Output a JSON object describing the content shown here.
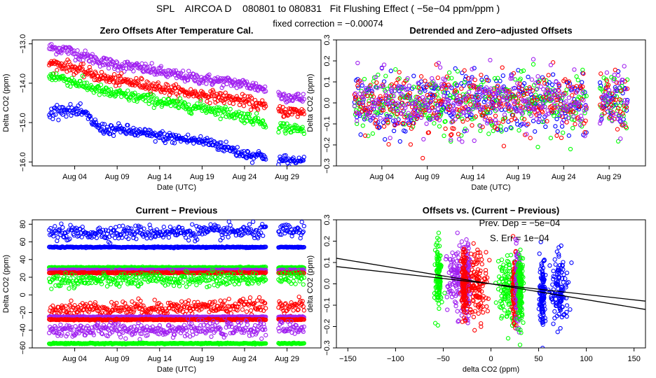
{
  "page": {
    "title": "SPL    AIRCOA D    080801 to 080831   Fit Flushing Effect ( −5e−04 ppm/ppm )",
    "subtitle": "fixed correction = −0.00074"
  },
  "colors": {
    "blue": "#0000ff",
    "red": "#ff0000",
    "green": "#00ff00",
    "purple": "#a020f0",
    "axis": "#000000"
  },
  "chart_data": [
    {
      "type": "scatter",
      "title": "Zero Offsets After Temperature Cal.",
      "xlabel": "Date (UTC)",
      "ylabel": "Delta CO2 (ppm)",
      "x_is_date": true,
      "xlim": [
        "2008-07-30",
        "2008-09-02"
      ],
      "ylim": [
        -16.1,
        -12.9
      ],
      "x_ticks": [
        {
          "value": "2008-08-04",
          "label": "Aug 04"
        },
        {
          "value": "2008-08-09",
          "label": "Aug 09"
        },
        {
          "value": "2008-08-14",
          "label": "Aug 14"
        },
        {
          "value": "2008-08-19",
          "label": "Aug 19"
        },
        {
          "value": "2008-08-24",
          "label": "Aug 24"
        },
        {
          "value": "2008-08-29",
          "label": "Aug 29"
        }
      ],
      "y_ticks": [
        {
          "value": -16.0,
          "label": "−16.0"
        },
        {
          "value": -15.0,
          "label": "−15.0"
        },
        {
          "value": -14.0,
          "label": "−14.0"
        },
        {
          "value": -13.0,
          "label": "−13.0"
        }
      ],
      "grid": false,
      "gaps": [
        [
          "2008-08-26T12:00",
          "2008-08-28T00:00"
        ]
      ],
      "series": [
        {
          "color": "purple",
          "spread": 0.07,
          "dates": [
            "2008-08-01",
            "2008-08-03",
            "2008-08-05",
            "2008-08-08",
            "2008-08-12",
            "2008-08-16",
            "2008-08-20",
            "2008-08-24",
            "2008-08-26T12:00",
            "2008-08-28",
            "2008-08-31"
          ],
          "values": [
            -13.1,
            -13.15,
            -13.3,
            -13.5,
            -13.62,
            -13.8,
            -13.92,
            -14.02,
            -14.15,
            -14.3,
            -14.4
          ]
        },
        {
          "color": "red",
          "spread": 0.07,
          "dates": [
            "2008-08-01",
            "2008-08-03",
            "2008-08-05",
            "2008-08-08",
            "2008-08-12",
            "2008-08-16",
            "2008-08-20",
            "2008-08-24",
            "2008-08-26T12:00",
            "2008-08-28",
            "2008-08-31"
          ],
          "values": [
            -13.5,
            -13.55,
            -13.7,
            -13.9,
            -14.02,
            -14.2,
            -14.32,
            -14.45,
            -14.6,
            -14.7,
            -14.75
          ]
        },
        {
          "color": "green",
          "spread": 0.07,
          "dates": [
            "2008-08-01",
            "2008-08-03",
            "2008-08-05",
            "2008-08-08",
            "2008-08-12",
            "2008-08-16",
            "2008-08-20",
            "2008-08-24",
            "2008-08-26T12:00",
            "2008-08-28",
            "2008-08-31"
          ],
          "values": [
            -13.8,
            -13.9,
            -14.05,
            -14.25,
            -14.38,
            -14.55,
            -14.65,
            -14.85,
            -15.0,
            -15.1,
            -15.2
          ]
        },
        {
          "color": "blue",
          "spread": 0.07,
          "dates": [
            "2008-08-01",
            "2008-08-02",
            "2008-08-05",
            "2008-08-07",
            "2008-08-10",
            "2008-08-14",
            "2008-08-18",
            "2008-08-20",
            "2008-08-24",
            "2008-08-26T12:00",
            "2008-08-28",
            "2008-08-31"
          ],
          "values": [
            -14.8,
            -14.65,
            -14.75,
            -15.15,
            -15.2,
            -15.35,
            -15.45,
            -15.5,
            -15.8,
            -15.85,
            -15.95,
            -16.0
          ]
        }
      ]
    },
    {
      "type": "scatter",
      "title": "Detrended and Zero−adjusted Offsets",
      "xlabel": "Date (UTC)",
      "ylabel": "Delta CO2 (ppm)",
      "x_is_date": true,
      "xlim": [
        "2008-07-30",
        "2008-09-02"
      ],
      "ylim": [
        -0.3,
        0.3
      ],
      "x_ticks": [
        {
          "value": "2008-08-04",
          "label": "Aug 04"
        },
        {
          "value": "2008-08-09",
          "label": "Aug 09"
        },
        {
          "value": "2008-08-14",
          "label": "Aug 14"
        },
        {
          "value": "2008-08-19",
          "label": "Aug 19"
        },
        {
          "value": "2008-08-24",
          "label": "Aug 24"
        },
        {
          "value": "2008-08-29",
          "label": "Aug 29"
        }
      ],
      "y_ticks": [
        {
          "value": -0.3,
          "label": "−0.3"
        },
        {
          "value": -0.2,
          "label": "−0.2"
        },
        {
          "value": -0.1,
          "label": "−0.1"
        },
        {
          "value": 0.0,
          "label": "0.0"
        },
        {
          "value": 0.1,
          "label": "0.1"
        },
        {
          "value": 0.2,
          "label": "0.2"
        },
        {
          "value": 0.3,
          "label": "0.3"
        }
      ],
      "grid": false,
      "gaps": [
        [
          "2008-08-26T12:00",
          "2008-08-28T00:00"
        ]
      ],
      "series": [
        {
          "color": "blue",
          "spread": 0.07,
          "dates": [
            "2008-08-01",
            "2008-08-31"
          ],
          "values": [
            0.0,
            0.0
          ]
        },
        {
          "color": "green",
          "spread": 0.07,
          "dates": [
            "2008-08-01",
            "2008-08-31"
          ],
          "values": [
            0.0,
            0.0
          ]
        },
        {
          "color": "red",
          "spread": 0.07,
          "dates": [
            "2008-08-01",
            "2008-08-31"
          ],
          "values": [
            0.0,
            0.0
          ]
        },
        {
          "color": "purple",
          "spread": 0.07,
          "dates": [
            "2008-08-01",
            "2008-08-31"
          ],
          "values": [
            0.0,
            0.0
          ]
        }
      ]
    },
    {
      "type": "scatter",
      "title": "Current − Previous",
      "xlabel": "Date (UTC)",
      "ylabel": "Delta CO2 (ppm)",
      "x_is_date": true,
      "xlim": [
        "2008-07-30",
        "2008-09-02"
      ],
      "ylim": [
        -60,
        85
      ],
      "x_ticks": [
        {
          "value": "2008-08-04",
          "label": "Aug 04"
        },
        {
          "value": "2008-08-09",
          "label": "Aug 09"
        },
        {
          "value": "2008-08-14",
          "label": "Aug 14"
        },
        {
          "value": "2008-08-19",
          "label": "Aug 19"
        },
        {
          "value": "2008-08-24",
          "label": "Aug 24"
        },
        {
          "value": "2008-08-29",
          "label": "Aug 29"
        }
      ],
      "y_ticks": [
        {
          "value": -60,
          "label": "−60"
        },
        {
          "value": -40,
          "label": "−40"
        },
        {
          "value": -20,
          "label": "−20"
        },
        {
          "value": 0,
          "label": "0"
        },
        {
          "value": 20,
          "label": "20"
        },
        {
          "value": 40,
          "label": "40"
        },
        {
          "value": 60,
          "label": "60"
        },
        {
          "value": 80,
          "label": "80"
        }
      ],
      "grid": false,
      "gaps": [
        [
          "2008-08-26T12:00",
          "2008-08-28T00:00"
        ]
      ],
      "series": [
        {
          "color": "blue",
          "spread": 4.0,
          "dates": [
            "2008-08-01",
            "2008-08-31"
          ],
          "values": [
            70,
            72
          ]
        },
        {
          "color": "blue",
          "spread": 0.3,
          "dates": [
            "2008-08-01",
            "2008-08-31"
          ],
          "values": [
            54,
            54
          ]
        },
        {
          "color": "green",
          "spread": 0.3,
          "dates": [
            "2008-08-01",
            "2008-08-31"
          ],
          "values": [
            31,
            31
          ]
        },
        {
          "color": "purple",
          "spread": 0.3,
          "dates": [
            "2008-08-01",
            "2008-08-31"
          ],
          "values": [
            28,
            28
          ]
        },
        {
          "color": "red",
          "spread": 0.3,
          "dates": [
            "2008-08-01",
            "2008-08-31"
          ],
          "values": [
            25,
            25
          ]
        },
        {
          "color": "green",
          "spread": 4.0,
          "dates": [
            "2008-08-01",
            "2008-08-31"
          ],
          "values": [
            16,
            19
          ]
        },
        {
          "color": "red",
          "spread": 4.0,
          "dates": [
            "2008-08-01",
            "2008-08-31"
          ],
          "values": [
            -16,
            -12
          ]
        },
        {
          "color": "purple",
          "spread": 0.3,
          "dates": [
            "2008-08-01",
            "2008-08-31"
          ],
          "values": [
            -25,
            -25
          ]
        },
        {
          "color": "red",
          "spread": 0.3,
          "dates": [
            "2008-08-01",
            "2008-08-31"
          ],
          "values": [
            -28,
            -28
          ]
        },
        {
          "color": "purple",
          "spread": 4.0,
          "dates": [
            "2008-08-01",
            "2008-08-31"
          ],
          "values": [
            -40,
            -38
          ]
        },
        {
          "color": "green",
          "spread": 0.3,
          "dates": [
            "2008-08-01",
            "2008-08-31"
          ],
          "values": [
            -55,
            -55
          ]
        }
      ]
    },
    {
      "type": "scatter",
      "title": "Offsets vs. (Current − Previous)",
      "xlabel": "delta CO2 (ppm)",
      "ylabel": "delta CO2 (ppm)",
      "x_is_date": false,
      "xlim": [
        -162,
        162
      ],
      "ylim": [
        -0.3,
        0.3
      ],
      "x_ticks": [
        {
          "value": -150,
          "label": "−150"
        },
        {
          "value": -100,
          "label": "−100"
        },
        {
          "value": -50,
          "label": "−50"
        },
        {
          "value": 0,
          "label": "0"
        },
        {
          "value": 50,
          "label": "50"
        },
        {
          "value": 100,
          "label": "100"
        },
        {
          "value": 150,
          "label": "150"
        }
      ],
      "y_ticks": [
        {
          "value": -0.3,
          "label": "−0.3"
        },
        {
          "value": -0.2,
          "label": "−0.2"
        },
        {
          "value": -0.1,
          "label": "−0.1"
        },
        {
          "value": 0.0,
          "label": "0.0"
        },
        {
          "value": 0.1,
          "label": "0.1"
        },
        {
          "value": 0.2,
          "label": "0.2"
        },
        {
          "value": 0.3,
          "label": "0.3"
        }
      ],
      "grid": false,
      "clusters": [
        {
          "color": "green",
          "x_center": -55,
          "x_spread": 1.5,
          "y_center": 0.03,
          "y_spread": 0.08
        },
        {
          "color": "purple",
          "x_center": -36,
          "x_spread": 5,
          "y_center": 0.02,
          "y_spread": 0.08
        },
        {
          "color": "purple",
          "x_center": -25,
          "x_spread": 1.5,
          "y_center": 0.01,
          "y_spread": 0.08
        },
        {
          "color": "red",
          "x_center": -28,
          "x_spread": 1.5,
          "y_center": 0.01,
          "y_spread": 0.08
        },
        {
          "color": "red",
          "x_center": -14,
          "x_spread": 5,
          "y_center": 0.0,
          "y_spread": 0.08
        },
        {
          "color": "green",
          "x_center": 17,
          "x_spread": 5,
          "y_center": -0.02,
          "y_spread": 0.08
        },
        {
          "color": "red",
          "x_center": 25,
          "x_spread": 1.5,
          "y_center": -0.02,
          "y_spread": 0.08
        },
        {
          "color": "purple",
          "x_center": 28,
          "x_spread": 1.5,
          "y_center": -0.02,
          "y_spread": 0.08
        },
        {
          "color": "green",
          "x_center": 31,
          "x_spread": 1.5,
          "y_center": -0.02,
          "y_spread": 0.08
        },
        {
          "color": "blue",
          "x_center": 54,
          "x_spread": 1.5,
          "y_center": -0.03,
          "y_spread": 0.08
        },
        {
          "color": "blue",
          "x_center": 72,
          "x_spread": 5,
          "y_center": -0.04,
          "y_spread": 0.08
        }
      ],
      "lines": [
        {
          "color": "axis",
          "slope": -0.00074,
          "intercept": 0.0
        },
        {
          "color": "axis",
          "slope": -0.0005,
          "intercept": 0.0
        }
      ],
      "annotations": [
        {
          "text": "Prev. Dep =  −5e−04",
          "x": 30,
          "y": 0.27
        },
        {
          "text": "S. Err =  1e−04",
          "x": 30,
          "y": 0.2
        }
      ]
    }
  ]
}
